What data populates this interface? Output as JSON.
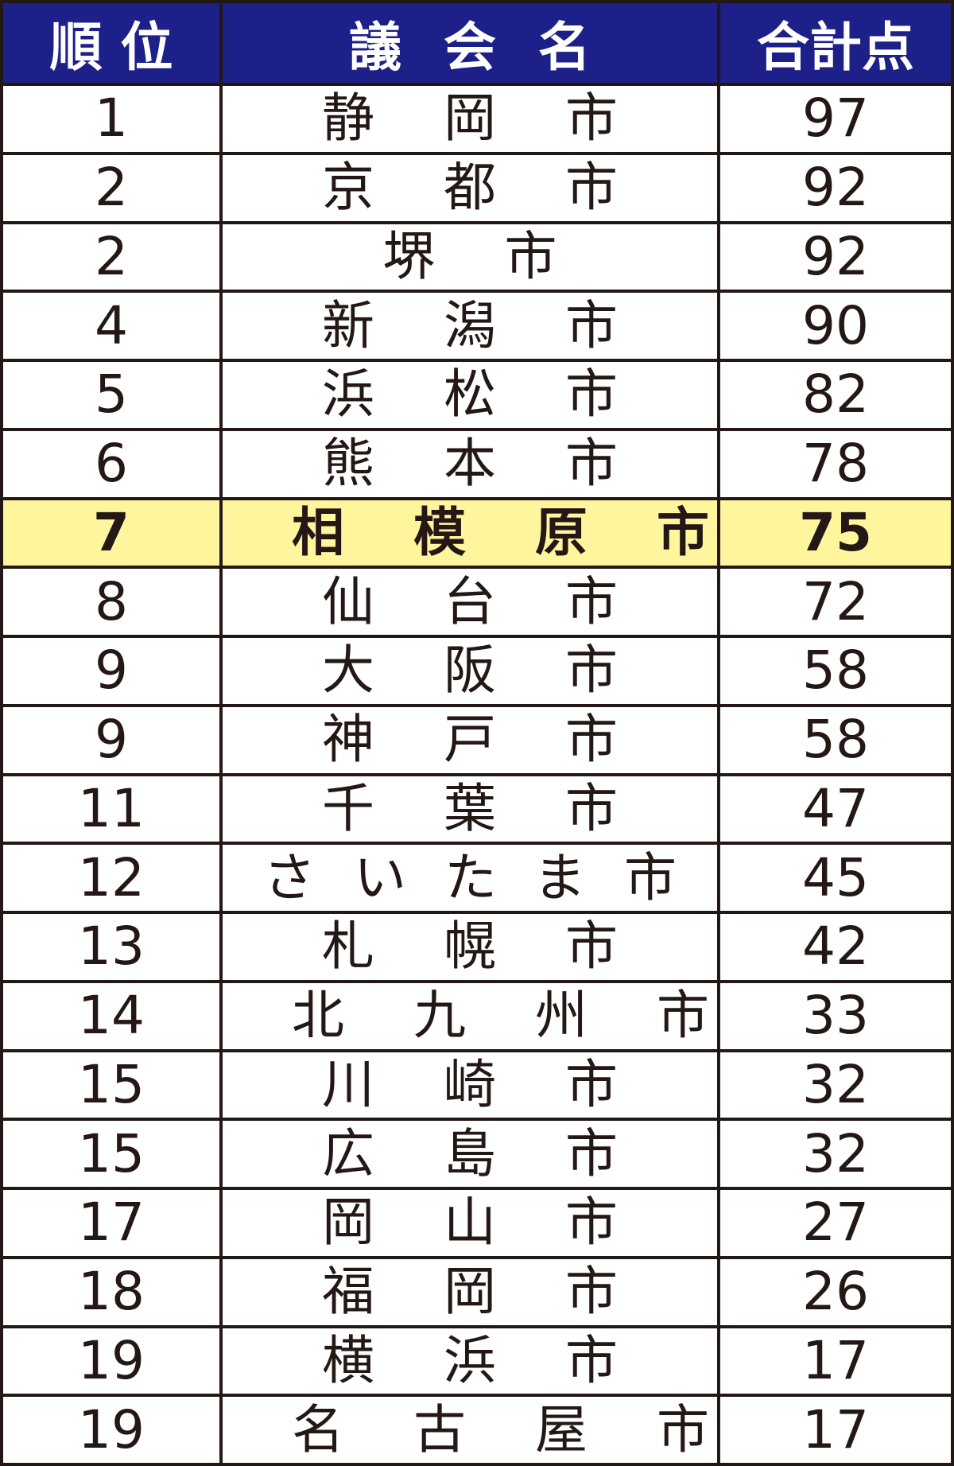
{
  "headers": {
    "rank": "順 位",
    "name": "議 会 名",
    "score": "合計点"
  },
  "highlight_color": "#fff59d",
  "header_color": "#1c2088",
  "rows": [
    {
      "rank": "1",
      "name": "静岡市",
      "score": "97"
    },
    {
      "rank": "2",
      "name": "京都市",
      "score": "92"
    },
    {
      "rank": "2",
      "name": "堺市",
      "score": "92"
    },
    {
      "rank": "4",
      "name": "新潟市",
      "score": "90"
    },
    {
      "rank": "5",
      "name": "浜松市",
      "score": "82"
    },
    {
      "rank": "6",
      "name": "熊本市",
      "score": "78"
    },
    {
      "rank": "7",
      "name": "相模原市",
      "score": "75",
      "highlighted": true
    },
    {
      "rank": "8",
      "name": "仙台市",
      "score": "72"
    },
    {
      "rank": "9",
      "name": "大阪市",
      "score": "58"
    },
    {
      "rank": "9",
      "name": "神戸市",
      "score": "58"
    },
    {
      "rank": "11",
      "name": "千葉市",
      "score": "47"
    },
    {
      "rank": "12",
      "name": "さいたま市",
      "score": "45"
    },
    {
      "rank": "13",
      "name": "札幌市",
      "score": "42"
    },
    {
      "rank": "14",
      "name": "北九州市",
      "score": "33"
    },
    {
      "rank": "15",
      "name": "川崎市",
      "score": "32"
    },
    {
      "rank": "15",
      "name": "広島市",
      "score": "32"
    },
    {
      "rank": "17",
      "name": "岡山市",
      "score": "27"
    },
    {
      "rank": "18",
      "name": "福岡市",
      "score": "26"
    },
    {
      "rank": "19",
      "name": "横浜市",
      "score": "17"
    },
    {
      "rank": "19",
      "name": "名古屋市",
      "score": "17"
    }
  ]
}
